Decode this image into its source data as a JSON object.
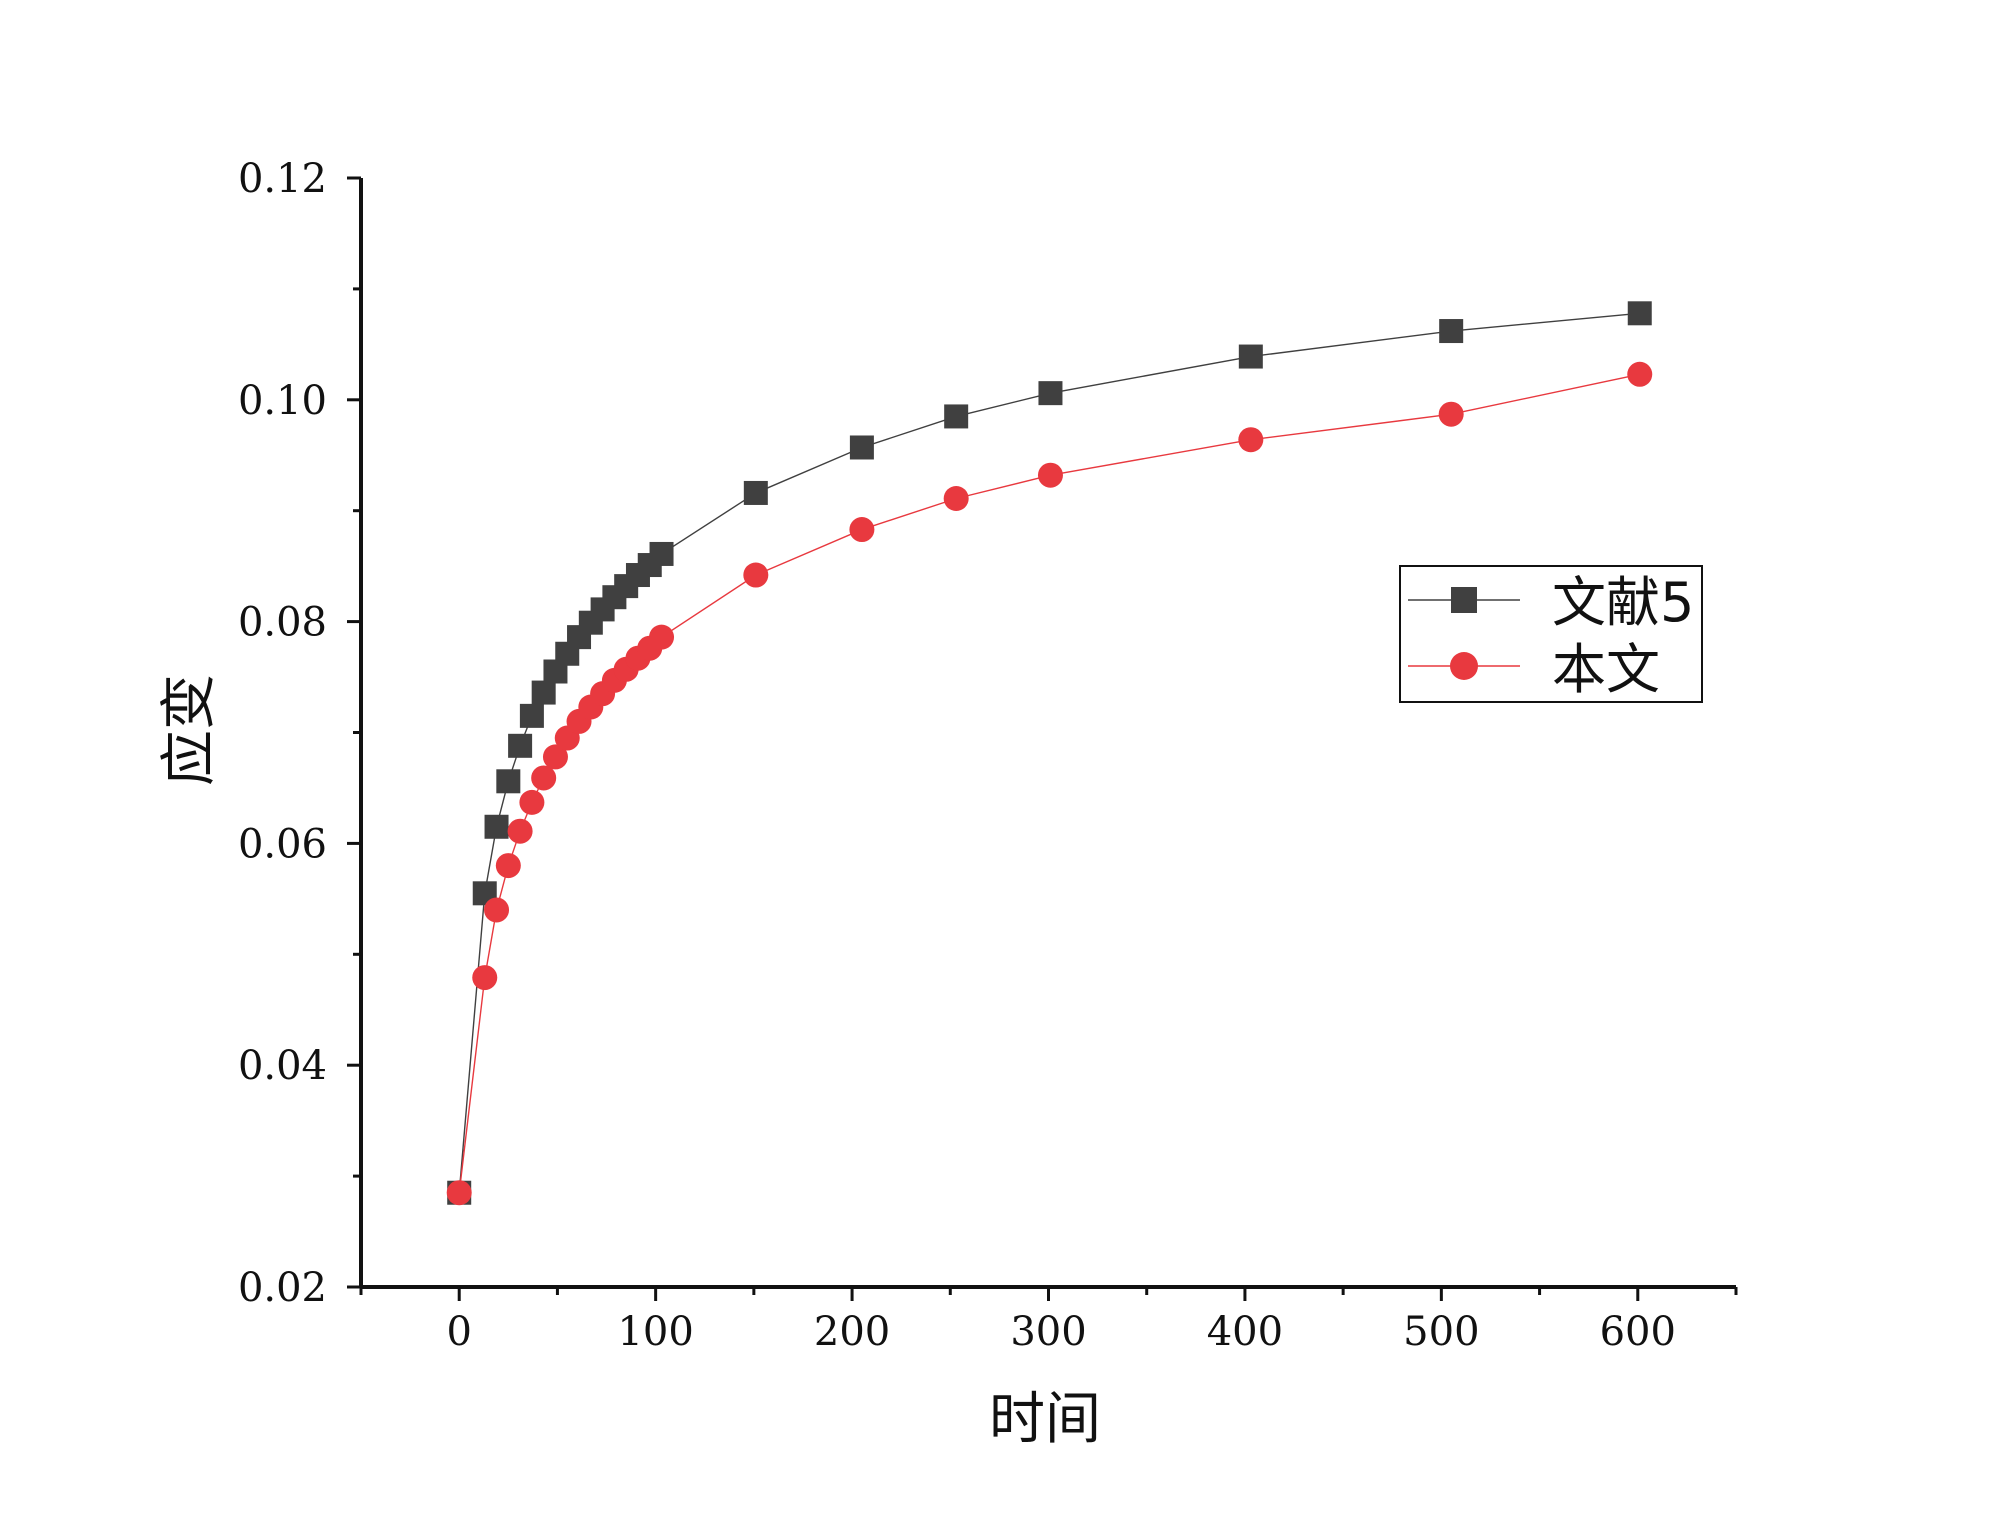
{
  "chart_data": {
    "type": "line",
    "title": "",
    "xlabel": "时间",
    "ylabel": "应变",
    "xlim": [
      -50,
      650
    ],
    "ylim": [
      0.02,
      0.12
    ],
    "xticks": [
      0,
      100,
      200,
      300,
      400,
      500,
      600
    ],
    "xtick_labels": [
      "0",
      "100",
      "200",
      "300",
      "400",
      "500",
      "600"
    ],
    "yticks": [
      0.02,
      0.04,
      0.06,
      0.08,
      0.1,
      0.12
    ],
    "ytick_labels": [
      "0.02",
      "0.04",
      "0.06",
      "0.08",
      "0.10",
      "0.12"
    ],
    "grid": false,
    "legend_position": "right-middle",
    "series": [
      {
        "name": "文献5",
        "color": "#404040",
        "marker": "square",
        "x": [
          0,
          13,
          19,
          25,
          31,
          37,
          43,
          49,
          55,
          61,
          67,
          73,
          79,
          85,
          91,
          97,
          103,
          151,
          205,
          253,
          301,
          403,
          505,
          601
        ],
        "y": [
          0.0285,
          0.0555,
          0.0615,
          0.0656,
          0.0688,
          0.0715,
          0.0736,
          0.0755,
          0.0771,
          0.0786,
          0.0799,
          0.0811,
          0.0822,
          0.0832,
          0.0842,
          0.0851,
          0.0861,
          0.0916,
          0.0957,
          0.0985,
          0.1006,
          0.1039,
          0.1062,
          0.1078
        ]
      },
      {
        "name": "本文",
        "color": "#e8393f",
        "marker": "circle",
        "x": [
          0,
          13,
          19,
          25,
          31,
          37,
          43,
          49,
          55,
          61,
          67,
          73,
          79,
          85,
          91,
          97,
          103,
          151,
          205,
          253,
          301,
          403,
          505,
          601
        ],
        "y": [
          0.0285,
          0.0479,
          0.054,
          0.058,
          0.0611,
          0.0637,
          0.0659,
          0.0678,
          0.0695,
          0.071,
          0.0723,
          0.0735,
          0.0747,
          0.0757,
          0.0767,
          0.0776,
          0.0786,
          0.0842,
          0.0883,
          0.0911,
          0.0932,
          0.0964,
          0.0987,
          0.1023
        ]
      }
    ]
  }
}
